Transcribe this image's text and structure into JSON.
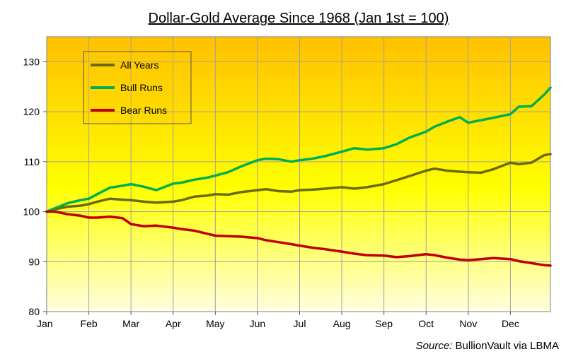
{
  "chart_data": {
    "type": "line",
    "title": "Dollar-Gold Average Since 1968 (Jan 1st = 100)",
    "source_label": "Source:",
    "source_text": "BullionVault via LBMA",
    "ylim": [
      80,
      135
    ],
    "yticks": [
      80,
      90,
      100,
      110,
      120,
      130
    ],
    "x_labels": [
      "Jan",
      "Feb",
      "Mar",
      "Apr",
      "May",
      "Jun",
      "Jul",
      "Aug",
      "Sep",
      "Oct",
      "Nov",
      "Dec"
    ],
    "grid": true,
    "legend_position": "top-left",
    "x": [
      0,
      0.2,
      0.5,
      0.8,
      1,
      1.2,
      1.5,
      1.8,
      2,
      2.3,
      2.6,
      3,
      3.2,
      3.5,
      3.8,
      4,
      4.3,
      4.6,
      5,
      5.2,
      5.5,
      5.8,
      6,
      6.3,
      6.6,
      7,
      7.3,
      7.6,
      8,
      8.3,
      8.6,
      9,
      9.2,
      9.5,
      9.8,
      10,
      10.3,
      10.6,
      11,
      11.2,
      11.5,
      11.8,
      11.95
    ],
    "series": [
      {
        "name": "All Years",
        "color": "#6b6b00",
        "values": [
          100,
          100.5,
          101.0,
          101.2,
          101.5,
          102.0,
          102.6,
          102.4,
          102.3,
          102.0,
          101.8,
          102.0,
          102.3,
          103.0,
          103.2,
          103.5,
          103.4,
          103.9,
          104.3,
          104.5,
          104.1,
          104.0,
          104.3,
          104.4,
          104.6,
          104.9,
          104.6,
          104.9,
          105.5,
          106.3,
          107.1,
          108.2,
          108.6,
          108.2,
          108.0,
          107.9,
          107.8,
          108.5,
          109.8,
          109.5,
          109.8,
          111.3,
          111.5
        ]
      },
      {
        "name": "Bull Runs",
        "color": "#00b050",
        "values": [
          100,
          100.7,
          101.7,
          102.3,
          102.6,
          103.5,
          104.8,
          105.2,
          105.5,
          105.0,
          104.3,
          105.6,
          105.8,
          106.4,
          106.8,
          107.2,
          107.9,
          109.0,
          110.3,
          110.6,
          110.5,
          110.0,
          110.3,
          110.6,
          111.1,
          112.0,
          112.7,
          112.4,
          112.7,
          113.5,
          114.8,
          116.0,
          117.0,
          118.0,
          118.9,
          117.8,
          118.3,
          118.8,
          119.5,
          121.0,
          121.1,
          123.4,
          124.8
        ]
      },
      {
        "name": "Bear Runs",
        "color": "#c00000",
        "values": [
          100,
          100.0,
          99.5,
          99.2,
          98.8,
          98.8,
          99.0,
          98.7,
          97.5,
          97.1,
          97.2,
          96.8,
          96.5,
          96.2,
          95.6,
          95.2,
          95.1,
          95.0,
          94.7,
          94.3,
          93.9,
          93.5,
          93.2,
          92.8,
          92.5,
          92.0,
          91.6,
          91.3,
          91.2,
          90.9,
          91.1,
          91.5,
          91.3,
          90.8,
          90.4,
          90.3,
          90.5,
          90.7,
          90.5,
          90.1,
          89.7,
          89.3,
          89.2
        ]
      }
    ]
  }
}
